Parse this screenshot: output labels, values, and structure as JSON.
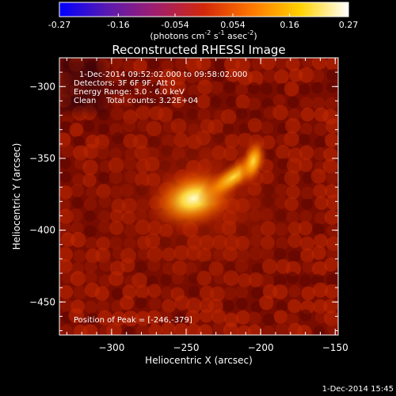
{
  "colorbar": {
    "ticks": [
      "-0.27",
      "-0.16",
      "-0.054",
      "0.054",
      "0.16",
      "0.27"
    ],
    "tick_values": [
      -0.27,
      -0.16,
      -0.054,
      0.054,
      0.16,
      0.27
    ],
    "unit_main": "(photons cm",
    "unit_e1": "-2",
    "unit_mid": " s",
    "unit_e2": "-1",
    "unit_tail": " asec",
    "unit_e3": "-2",
    "unit_close": ")",
    "stops": [
      "#0000ff",
      "#5a1ab0",
      "#a01e6e",
      "#d2280a",
      "#ff7800",
      "#ffd200",
      "#ffffff"
    ]
  },
  "chart_data": {
    "type": "heatmap",
    "title": "Reconstructed RHESSI Image",
    "xlabel": "Heliocentric X (arcsec)",
    "ylabel": "Heliocentric Y (arcsec)",
    "xlim": [
      -335,
      -148
    ],
    "ylim": [
      -473,
      -280
    ],
    "xticks": [
      -300,
      -250,
      -200,
      -150
    ],
    "yticks": [
      -300,
      -350,
      -400,
      -450
    ],
    "sources": [
      {
        "x": -245,
        "y": -378,
        "intensity": 0.27
      },
      {
        "x": -205,
        "y": -352,
        "intensity": 0.2
      }
    ],
    "annotations": [
      "1-Dec-2014 09:52:02.000 to 09:58:02.000",
      "Detectors: 3F 6F 9F, Att 0",
      "Energy Range: 3.0 - 6.0 keV",
      "Clean    Total counts: 3.22E+04"
    ],
    "peak_label": "Position of Peak = [-246,-379]"
  },
  "footer_date": "1-Dec-2014 15:45"
}
